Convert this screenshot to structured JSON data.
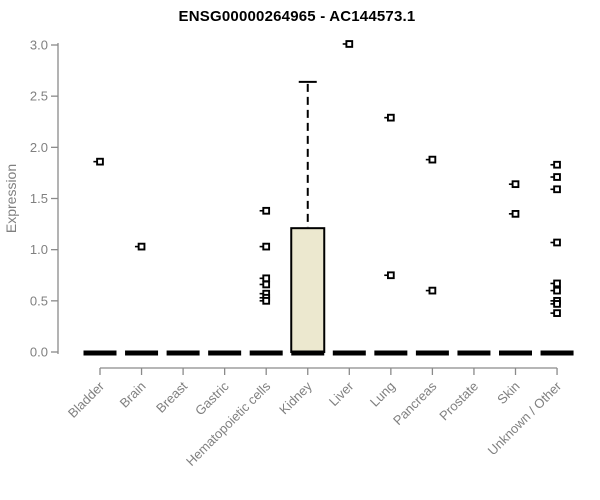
{
  "chart_data": {
    "type": "box",
    "title": "ENSG00000264965 - AC144573.1",
    "xlabel": "",
    "ylabel": "Expression",
    "ylim": [
      0.0,
      3.0
    ],
    "yticks": [
      0.0,
      0.5,
      1.0,
      1.5,
      2.0,
      2.5,
      3.0
    ],
    "grid": false,
    "legend": "none",
    "categories": [
      "Bladder",
      "Brain",
      "Breast",
      "Gastric",
      "Hematopoietic cells",
      "Kidney",
      "Liver",
      "Lung",
      "Pancreas",
      "Prostate",
      "Skin",
      "Unknown / Other"
    ],
    "boxes": [
      {
        "category": "Bladder",
        "q1": 0,
        "median": 0,
        "q3": 0,
        "whisker_low": 0,
        "whisker_high": 0,
        "outliers": [
          1.86
        ]
      },
      {
        "category": "Brain",
        "q1": 0,
        "median": 0,
        "q3": 0,
        "whisker_low": 0,
        "whisker_high": 0,
        "outliers": [
          1.03
        ]
      },
      {
        "category": "Breast",
        "q1": 0,
        "median": 0,
        "q3": 0,
        "whisker_low": 0,
        "whisker_high": 0,
        "outliers": []
      },
      {
        "category": "Gastric",
        "q1": 0,
        "median": 0,
        "q3": 0,
        "whisker_low": 0,
        "whisker_high": 0,
        "outliers": []
      },
      {
        "category": "Hematopoietic cells",
        "q1": 0,
        "median": 0,
        "q3": 0,
        "whisker_low": 0,
        "whisker_high": 0,
        "outliers": [
          1.38,
          1.03,
          0.72,
          0.66,
          0.57,
          0.53,
          0.5
        ]
      },
      {
        "category": "Kidney",
        "q1": 0,
        "median": 0,
        "q3": 1.21,
        "whisker_low": 0,
        "whisker_high": 2.64,
        "outliers": []
      },
      {
        "category": "Liver",
        "q1": 0,
        "median": 0,
        "q3": 0,
        "whisker_low": 0,
        "whisker_high": 0,
        "outliers": [
          3.01
        ]
      },
      {
        "category": "Lung",
        "q1": 0,
        "median": 0,
        "q3": 0,
        "whisker_low": 0,
        "whisker_high": 0,
        "outliers": [
          2.29,
          0.75
        ]
      },
      {
        "category": "Pancreas",
        "q1": 0,
        "median": 0,
        "q3": 0,
        "whisker_low": 0,
        "whisker_high": 0,
        "outliers": [
          1.88,
          0.6
        ]
      },
      {
        "category": "Prostate",
        "q1": 0,
        "median": 0,
        "q3": 0,
        "whisker_low": 0,
        "whisker_high": 0,
        "outliers": []
      },
      {
        "category": "Skin",
        "q1": 0,
        "median": 0,
        "q3": 0,
        "whisker_low": 0,
        "whisker_high": 0,
        "outliers": [
          1.64,
          1.35
        ]
      },
      {
        "category": "Unknown / Other",
        "q1": 0,
        "median": 0,
        "q3": 0,
        "whisker_low": 0,
        "whisker_high": 0,
        "outliers": [
          1.83,
          1.71,
          1.59,
          1.07,
          0.67,
          0.6,
          0.5,
          0.47,
          0.38
        ]
      }
    ],
    "colors": {
      "box_fill": "#ece8cf",
      "box_stroke": "#000000",
      "median": "#000000",
      "outlier": "#000000",
      "axis": "#8a8a8a",
      "tick_text": "#808080",
      "title_text": "#000000",
      "background": "#ffffff"
    }
  }
}
